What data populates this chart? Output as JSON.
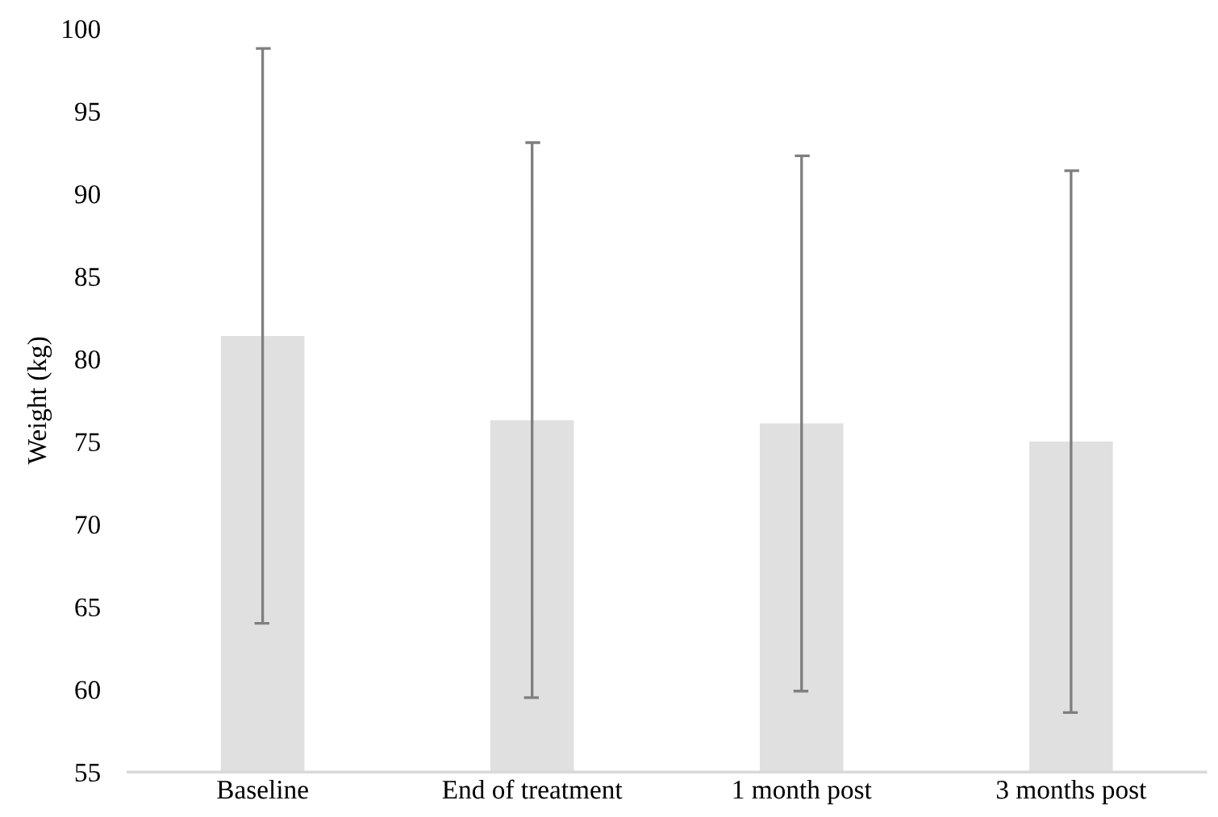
{
  "chart_data": {
    "type": "bar",
    "ylabel": "Weight (kg)",
    "categories": [
      "Baseline",
      "End of treatment",
      "1 month post",
      "3 months post"
    ],
    "values": [
      81.4,
      76.3,
      76.1,
      75.0
    ],
    "errors": [
      17.4,
      16.8,
      16.2,
      16.4
    ],
    "color": "#e0e0e0",
    "ylim": [
      55,
      100
    ],
    "yticks": [
      55,
      60,
      65,
      70,
      75,
      80,
      85,
      90,
      95,
      100
    ],
    "grid": false,
    "legend": false
  }
}
